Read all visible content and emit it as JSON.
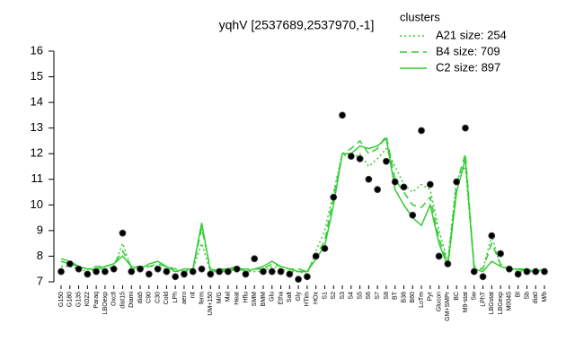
{
  "chart_data": {
    "type": "line",
    "title": "yqhV [2537689,2537970,-1]",
    "legend_title": "clusters",
    "legend_position": "top-right",
    "categories": [
      "G150",
      "G180",
      "G135",
      "K022",
      "Paraq",
      "LBOexp",
      "Oxctl",
      "dist15",
      "Diami",
      "dia5",
      "C90",
      "C30",
      "Cold",
      "LPh",
      "aero",
      "nit",
      "ferm",
      "UM+150",
      "M/G",
      "Mal",
      "Heat",
      "Hflu",
      "SMM",
      "BMM",
      "Glu",
      "Etha",
      "Salt",
      "Gly",
      "HTim",
      "HOx",
      "S1",
      "S2",
      "S3",
      "S4",
      "S5",
      "S6",
      "S7",
      "S8",
      "BT",
      "B38",
      "B60",
      "LoTm",
      "Pyr",
      "Glucon",
      "GM+SMPr",
      "BC",
      "M9-stat",
      "Sw",
      "LPhT",
      "LBGstat",
      "LBGexp",
      "M0045",
      "Bl",
      "Sb",
      "dia0",
      "M/b"
    ],
    "series": [
      {
        "name": "A21 size: 254",
        "color": "#33cc33",
        "dash": "dotted",
        "values": [
          7.6,
          7.6,
          7.5,
          7.4,
          7.5,
          7.5,
          7.6,
          8.5,
          7.5,
          7.5,
          7.6,
          7.6,
          7.5,
          7.4,
          7.4,
          7.5,
          8.5,
          7.4,
          7.4,
          7.4,
          7.5,
          7.4,
          7.4,
          7.4,
          7.6,
          7.5,
          7.4,
          7.4,
          7.3,
          8.2,
          9.0,
          10.5,
          12.0,
          11.8,
          12.0,
          11.5,
          11.8,
          12.2,
          11.5,
          10.8,
          10.5,
          10.8,
          10.6,
          9.0,
          7.8,
          11.0,
          11.5,
          7.5,
          7.5,
          8.8,
          7.6,
          7.5,
          7.4,
          7.4,
          7.4,
          7.4
        ]
      },
      {
        "name": "B4 size: 709",
        "color": "#33cc33",
        "dash": "dashed",
        "values": [
          7.9,
          7.8,
          7.6,
          7.5,
          7.6,
          7.6,
          7.7,
          8.2,
          7.6,
          7.6,
          7.6,
          7.7,
          7.6,
          7.5,
          7.4,
          7.5,
          9.1,
          7.5,
          7.4,
          7.5,
          7.5,
          7.5,
          7.5,
          7.5,
          7.7,
          7.6,
          7.5,
          7.5,
          7.4,
          8.0,
          8.6,
          10.3,
          12.0,
          12.2,
          12.5,
          12.0,
          12.2,
          12.7,
          11.0,
          10.5,
          10.0,
          9.9,
          10.3,
          8.7,
          7.7,
          10.8,
          12.0,
          7.6,
          7.5,
          8.5,
          7.7,
          7.5,
          7.5,
          7.4,
          7.4,
          7.5
        ]
      },
      {
        "name": "C2 size: 897",
        "color": "#33cc33",
        "dash": "solid",
        "values": [
          7.8,
          7.7,
          7.6,
          7.5,
          7.5,
          7.6,
          7.7,
          8.0,
          7.6,
          7.5,
          7.7,
          7.8,
          7.6,
          7.4,
          7.5,
          7.5,
          9.3,
          7.4,
          7.5,
          7.5,
          7.6,
          7.4,
          7.5,
          7.6,
          7.8,
          7.6,
          7.5,
          7.4,
          7.4,
          7.9,
          8.4,
          10.0,
          12.0,
          12.0,
          12.3,
          12.2,
          12.3,
          12.6,
          10.6,
          10.0,
          9.5,
          9.2,
          10.0,
          8.5,
          7.6,
          10.5,
          11.8,
          7.5,
          7.4,
          7.8,
          7.6,
          7.5,
          7.5,
          7.5,
          7.4,
          7.5
        ]
      }
    ],
    "points_color": "#000000",
    "points": [
      7.4,
      7.7,
      7.5,
      7.3,
      7.4,
      7.4,
      7.5,
      8.9,
      7.4,
      7.5,
      7.3,
      7.5,
      7.4,
      7.2,
      7.3,
      7.4,
      7.5,
      7.3,
      7.4,
      7.4,
      7.5,
      7.3,
      7.9,
      7.4,
      7.4,
      7.4,
      7.3,
      7.1,
      7.2,
      8.0,
      8.3,
      10.3,
      13.5,
      11.9,
      11.8,
      11.0,
      10.6,
      11.7,
      10.9,
      10.7,
      9.6,
      12.9,
      10.8,
      8.0,
      7.7,
      10.9,
      13.0,
      7.4,
      7.2,
      8.8,
      8.1,
      7.5,
      7.3,
      7.4,
      7.4,
      7.4
    ],
    "ylim": [
      7,
      16
    ],
    "yticks": [
      7,
      8,
      9,
      10,
      11,
      12,
      13,
      14,
      15,
      16
    ]
  }
}
